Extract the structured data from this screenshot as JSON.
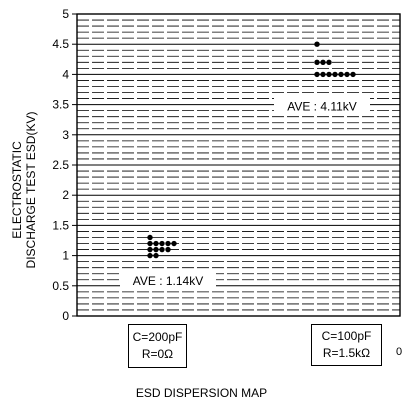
{
  "chart_data": {
    "type": "scatter",
    "title": "",
    "xlabel": "ESD DISPERSION MAP",
    "ylabel_lines": [
      "ELECTROSTATIC",
      "DISCHARGE TEST ESD(KV)"
    ],
    "ylim": [
      0,
      5
    ],
    "yticks": [
      "0",
      "0.5",
      "1",
      "1.5",
      "2",
      "2.5",
      "3",
      "3.5",
      "4",
      "4.5",
      "5"
    ],
    "grid": true,
    "categories": [
      {
        "line1": "C=200pF",
        "line2": "R=0Ω"
      },
      {
        "line1": "C=100pF",
        "line2": "R=1.5kΩ"
      }
    ],
    "series": [
      {
        "category": 0,
        "average_label": "AVE : 1.14kV",
        "points": [
          1.3,
          1.2,
          1.2,
          1.2,
          1.2,
          1.2,
          1.1,
          1.1,
          1.1,
          1.1,
          1.0,
          1.0
        ]
      },
      {
        "category": 1,
        "average_label": "AVE : 4.11kV",
        "points": [
          4.5,
          4.2,
          4.2,
          4.2,
          4.0,
          4.0,
          4.0,
          4.0,
          4.0,
          4.0,
          4.0
        ]
      }
    ]
  },
  "stray_mark": "0",
  "colors": {
    "axis": "#000000",
    "grid": "#000000",
    "dot": "#000000",
    "background": "#ffffff"
  }
}
